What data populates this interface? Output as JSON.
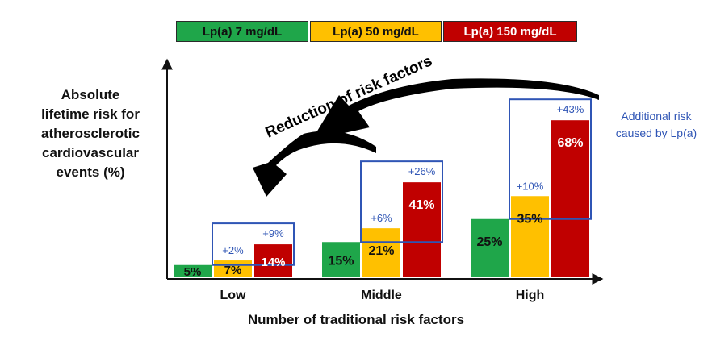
{
  "legend": [
    {
      "label": "Lp(a) 7 mg/dL",
      "color": "#1fa64a"
    },
    {
      "label": "Lp(a) 50 mg/dL",
      "color": "#ffc000"
    },
    {
      "label": "Lp(a) 150 mg/dL",
      "color": "#c00000"
    }
  ],
  "annotations": {
    "arrow_text": "Reduction of risk factors",
    "additional_risk_line1": "Additional risk",
    "additional_risk_line2": "caused by Lp(a)"
  },
  "chart_data": {
    "type": "bar",
    "title": "",
    "ylabel_lines": [
      "Absolute",
      "lifetime risk for",
      "atherosclerotic",
      "cardiovascular",
      "events  (%)"
    ],
    "xlabel": "Number of traditional risk factors",
    "categories": [
      "Low",
      "Middle",
      "High"
    ],
    "series": [
      {
        "name": "Lp(a) 7 mg/dL",
        "values": [
          5,
          15,
          25
        ],
        "labels": [
          "5%",
          "15%",
          "25%"
        ]
      },
      {
        "name": "Lp(a) 50 mg/dL",
        "values": [
          7,
          21,
          35
        ],
        "labels": [
          "7%",
          "21%",
          "35%"
        ]
      },
      {
        "name": "Lp(a) 150 mg/dL",
        "values": [
          14,
          41,
          68
        ],
        "labels": [
          "14%",
          "41%",
          "68%"
        ]
      }
    ],
    "additional_risk": [
      {
        "category": "Low",
        "labels": [
          "+2%",
          "+9%"
        ]
      },
      {
        "category": "Middle",
        "labels": [
          "+6%",
          "+26%"
        ]
      },
      {
        "category": "High",
        "labels": [
          "+10%",
          "+43%"
        ]
      }
    ],
    "ylim": [
      0,
      100
    ],
    "colors": {
      "green": "#1fa64a",
      "yellow": "#ffc000",
      "red": "#c00000",
      "box": "#2f55b5",
      "axis": "#111111"
    }
  }
}
